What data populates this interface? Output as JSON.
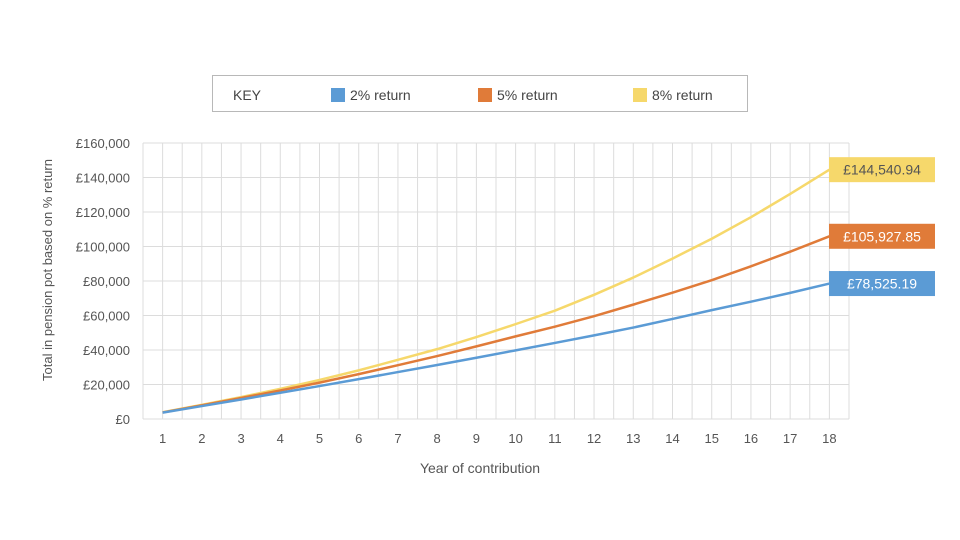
{
  "legend": {
    "key_label": "KEY",
    "items": [
      {
        "label": "2% return",
        "color": "#5b9bd5"
      },
      {
        "label": "5% return",
        "color": "#e07b39"
      },
      {
        "label": "8% return",
        "color": "#f6d86b"
      }
    ]
  },
  "chart_data": {
    "type": "line",
    "title": "",
    "xlabel": "Year of contribution",
    "ylabel": "Total in pension pot  based on % return",
    "x": [
      1,
      2,
      3,
      4,
      5,
      6,
      7,
      8,
      9,
      10,
      11,
      12,
      13,
      14,
      15,
      16,
      17,
      18
    ],
    "ylim": [
      0,
      160000
    ],
    "yticks": [
      0,
      20000,
      40000,
      60000,
      80000,
      100000,
      120000,
      140000,
      160000
    ],
    "ytick_labels": [
      "£0",
      "£20,000",
      "£40,000",
      "£60,000",
      "£80,000",
      "£100,000",
      "£120,000",
      "£140,000",
      "£160,000"
    ],
    "grid": true,
    "series": [
      {
        "name": "2% return",
        "color": "#5b9bd5",
        "values": [
          3700,
          7500,
          11300,
          15200,
          19100,
          23100,
          27200,
          31300,
          35500,
          39800,
          44100,
          48500,
          53000,
          58000,
          63100,
          68000,
          73100,
          78525.19
        ],
        "end_label": "£78,525.19"
      },
      {
        "name": "5% return",
        "color": "#e07b39",
        "values": [
          3800,
          7900,
          12200,
          16500,
          21100,
          26000,
          31200,
          36500,
          42100,
          47900,
          53500,
          59600,
          66300,
          73200,
          80500,
          88500,
          97000,
          105927.85
        ],
        "end_label": "£105,927.85"
      },
      {
        "name": "8% return",
        "color": "#f6d86b",
        "values": [
          3900,
          8200,
          12700,
          17500,
          22600,
          28200,
          34300,
          40500,
          47500,
          55000,
          62800,
          72000,
          82000,
          93000,
          104500,
          117000,
          130500,
          144540.94
        ],
        "end_label": "£144,540.94"
      }
    ]
  }
}
